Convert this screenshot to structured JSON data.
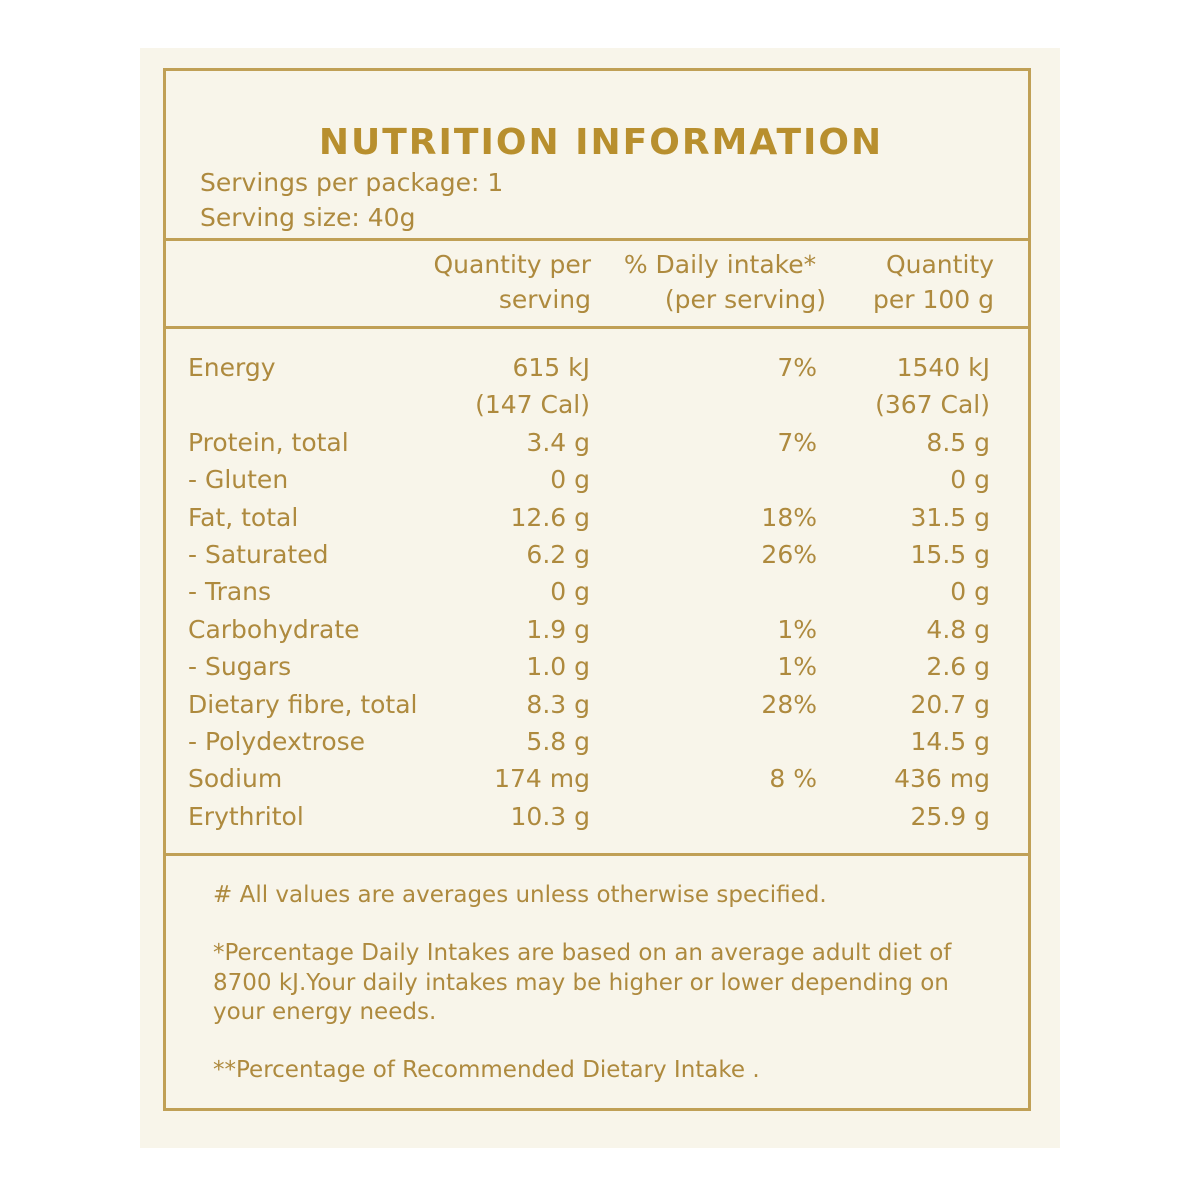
{
  "title": "NUTRITION INFORMATION",
  "servings": [
    "Servings per package: 1",
    "Serving size: 40g"
  ],
  "header": {
    "per_serving": [
      "Quantity per",
      "serving"
    ],
    "daily_intake": [
      "% Daily intake*",
      "(per serving)"
    ],
    "per_100g": [
      "Quantity",
      "per 100 g"
    ]
  },
  "rows": [
    {
      "name": "Energy",
      "per_serving": [
        "615 kJ",
        "(147 Cal)"
      ],
      "daily_intake": [
        "7%"
      ],
      "per_100g": [
        "1540 kJ",
        "(367 Cal)"
      ]
    },
    {
      "name": "Protein, total",
      "per_serving": [
        "3.4 g"
      ],
      "daily_intake": [
        "7%"
      ],
      "per_100g": [
        "8.5 g"
      ]
    },
    {
      "name": "- Gluten",
      "per_serving": [
        "0 g"
      ],
      "daily_intake": [],
      "per_100g": [
        "0 g"
      ]
    },
    {
      "name": "Fat, total",
      "per_serving": [
        "12.6 g"
      ],
      "daily_intake": [
        "18%"
      ],
      "per_100g": [
        "31.5 g"
      ]
    },
    {
      "name": "- Saturated",
      "per_serving": [
        "6.2 g"
      ],
      "daily_intake": [
        "26%"
      ],
      "per_100g": [
        "15.5 g"
      ]
    },
    {
      "name": "- Trans",
      "per_serving": [
        "0 g"
      ],
      "daily_intake": [],
      "per_100g": [
        "0 g"
      ]
    },
    {
      "name": "Carbohydrate",
      "per_serving": [
        "1.9 g"
      ],
      "daily_intake": [
        "1%"
      ],
      "per_100g": [
        "4.8 g"
      ]
    },
    {
      "name": "- Sugars",
      "per_serving": [
        "1.0 g"
      ],
      "daily_intake": [
        "1%"
      ],
      "per_100g": [
        "2.6 g"
      ]
    },
    {
      "name": "Dietary fibre, total",
      "per_serving": [
        "8.3 g"
      ],
      "daily_intake": [
        "28%"
      ],
      "per_100g": [
        "20.7 g"
      ]
    },
    {
      "name": "- Polydextrose",
      "per_serving": [
        "5.8 g"
      ],
      "daily_intake": [],
      "per_100g": [
        "14.5 g"
      ]
    },
    {
      "name": "Sodium",
      "per_serving": [
        "174 mg"
      ],
      "daily_intake": [
        "8 %"
      ],
      "per_100g": [
        "436 mg"
      ]
    },
    {
      "name": "Erythritol",
      "per_serving": [
        "10.3 g"
      ],
      "daily_intake": [],
      "per_100g": [
        "25.9 g"
      ]
    }
  ],
  "footnotes": [
    [
      "# All values are averages unless otherwise specified."
    ],
    [
      "*Percentage Daily Intakes are based on an average adult diet of",
      "8700 kJ.Your daily intakes may be higher or lower depending on",
      "your energy needs."
    ],
    [
      "**Percentage of Recommended Dietary Intake ."
    ]
  ]
}
